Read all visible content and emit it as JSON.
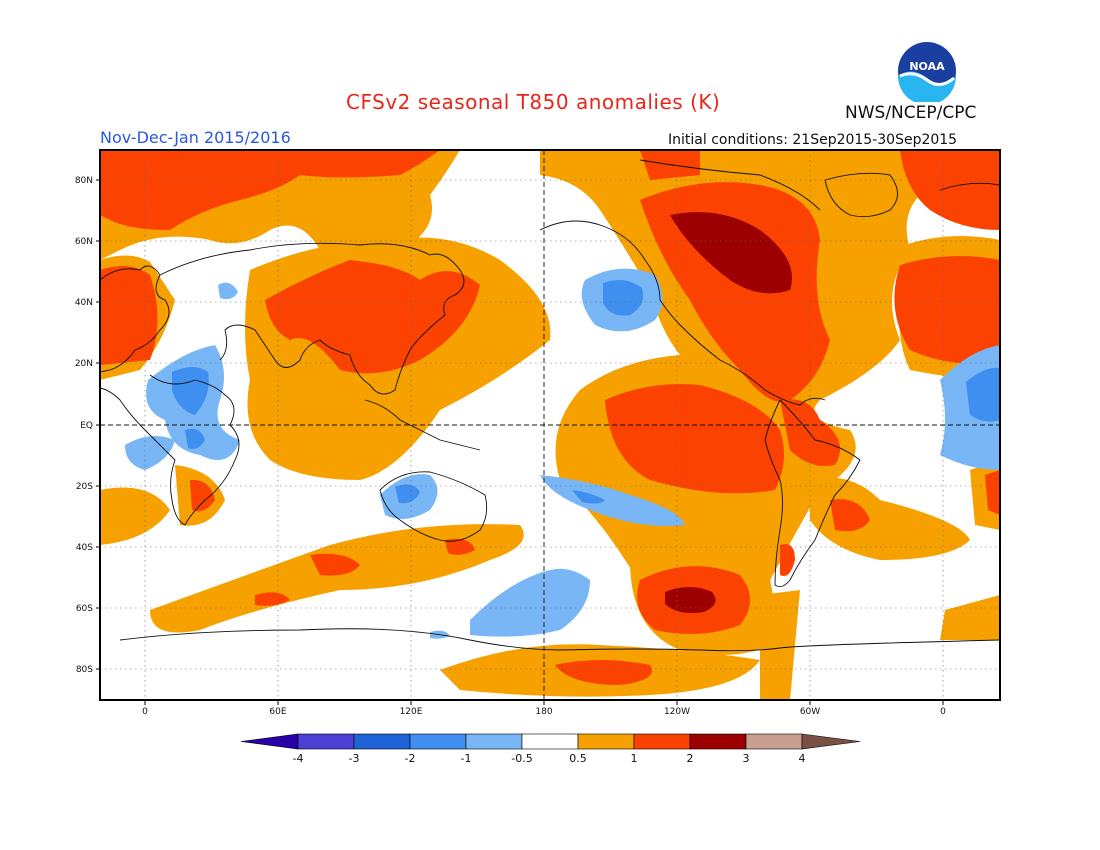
{
  "header": {
    "title": "CFSv2 seasonal T850 anomalies (K)",
    "season": "Nov-Dec-Jan 2015/2016",
    "initial_conditions": "Initial conditions: 21Sep2015-30Sep2015",
    "agency": "NWS/NCEP/CPC",
    "logo_text": "NOAA"
  },
  "axes": {
    "lat_labels": [
      "80N",
      "60N",
      "40N",
      "20N",
      "EQ",
      "20S",
      "40S",
      "60S",
      "80S"
    ],
    "lon_labels": [
      "0",
      "60E",
      "120E",
      "180",
      "120W",
      "60W",
      "0"
    ]
  },
  "colorbar": {
    "labels": [
      "-4",
      "-3",
      "-2",
      "-1",
      "-0.5",
      "0.5",
      "1",
      "2",
      "3",
      "4"
    ],
    "colors": [
      "#2a00a8",
      "#4b3fd6",
      "#1f63d8",
      "#3f8ff0",
      "#79b6f6",
      "#ffffff",
      "#f7a100",
      "#fb4200",
      "#9c0000",
      "#c8a090",
      "#7b5044"
    ]
  },
  "legend_colors": {
    "white": "#ffffff",
    "orange_0_5_to_1": "#f7a100",
    "red_1_to_2": "#fb4200",
    "darkred_2_to_3": "#9c0000",
    "lightblue_-1_to_-0_5": "#79b6f6",
    "blue_-2_to_-1": "#3f8ff0"
  }
}
